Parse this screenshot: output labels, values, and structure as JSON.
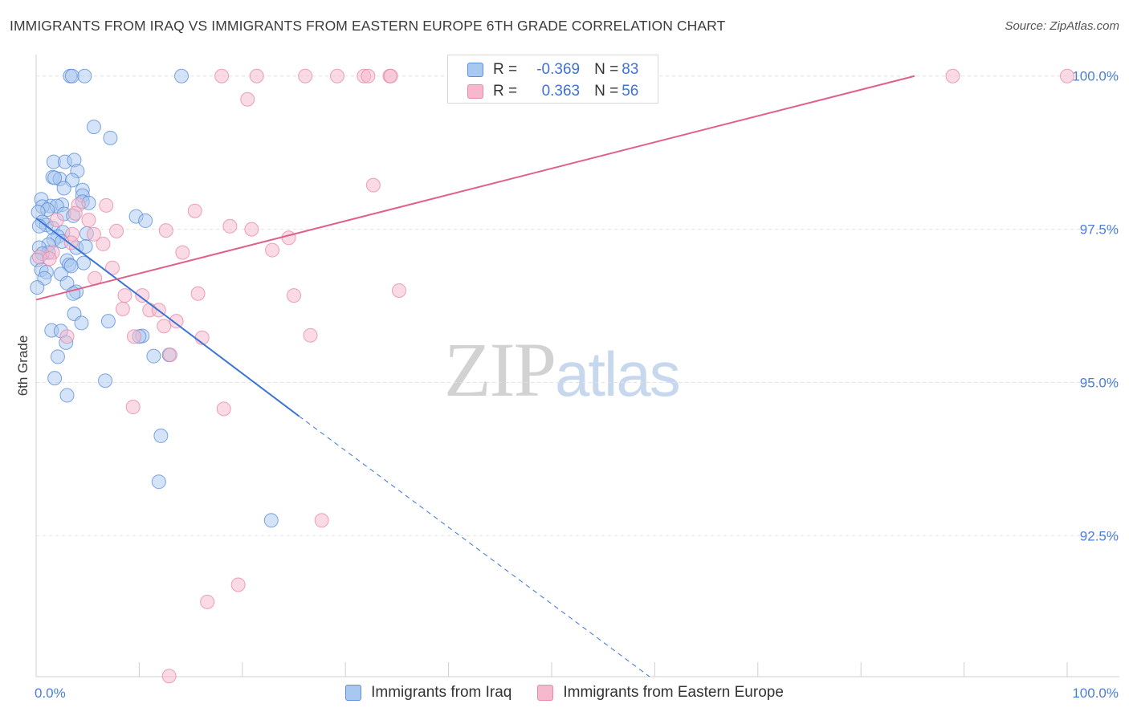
{
  "header": {
    "title": "IMMIGRANTS FROM IRAQ VS IMMIGRANTS FROM EASTERN EUROPE 6TH GRADE CORRELATION CHART",
    "source": "Source: ZipAtlas.com"
  },
  "watermark": {
    "zip": "ZIP",
    "atlas": "atlas"
  },
  "legend": {
    "series1": {
      "r_label": "R =",
      "r_value": "-0.369",
      "n_label": "N =",
      "n_value": "83"
    },
    "series2": {
      "r_label": "R =",
      "r_value": " 0.363",
      "n_label": "N =",
      "n_value": "56"
    }
  },
  "colors": {
    "blue_fill": "#a9c8f0",
    "blue_stroke": "#5d90d8",
    "blue_line": "#3a74d4",
    "pink_fill": "#f6b8cc",
    "pink_stroke": "#e88aa8",
    "pink_line": "#e0608a",
    "grid": "#e2e2e2",
    "tick_text": "#4a7ed8"
  },
  "chart_data": {
    "type": "scatter",
    "title": "IMMIGRANTS FROM IRAQ VS IMMIGRANTS FROM EASTERN EUROPE 6TH GRADE CORRELATION CHART",
    "xlabel": "",
    "ylabel": "6th Grade",
    "xlim": [
      0,
      100
    ],
    "ylim": [
      90.2,
      100.35
    ],
    "x_tick_labels": {
      "left": "0.0%",
      "right": "100.0%"
    },
    "y_ticks": [
      {
        "value": 100.0,
        "label": "100.0%"
      },
      {
        "value": 97.5,
        "label": "97.5%"
      },
      {
        "value": 95.0,
        "label": "95.0%"
      },
      {
        "value": 92.5,
        "label": "92.5%"
      }
    ],
    "series": [
      {
        "name": "Immigrants from Iraq",
        "color": "#a9c8f0",
        "r": -0.369,
        "n": 83,
        "trend": {
          "x0": 0.0,
          "y0": 97.68,
          "x1": 25.5,
          "y1": 94.45,
          "dash_to_x": 59.5,
          "dash_to_y": 90.2
        },
        "points": [
          [
            3.3,
            100.0
          ],
          [
            3.5,
            100.0
          ],
          [
            4.7,
            100.0
          ],
          [
            14.1,
            100.0
          ],
          [
            5.6,
            99.17
          ],
          [
            7.2,
            98.99
          ],
          [
            1.7,
            98.6
          ],
          [
            2.8,
            98.6
          ],
          [
            3.7,
            98.63
          ],
          [
            4.0,
            98.45
          ],
          [
            1.6,
            98.35
          ],
          [
            2.3,
            98.32
          ],
          [
            1.8,
            98.34
          ],
          [
            3.5,
            98.3
          ],
          [
            2.7,
            98.17
          ],
          [
            4.5,
            98.14
          ],
          [
            4.5,
            98.05
          ],
          [
            0.5,
            97.99
          ],
          [
            1.4,
            97.88
          ],
          [
            0.6,
            97.87
          ],
          [
            2.5,
            97.9
          ],
          [
            2.0,
            97.88
          ],
          [
            4.5,
            97.95
          ],
          [
            5.1,
            97.93
          ],
          [
            1.1,
            97.82
          ],
          [
            0.2,
            97.78
          ],
          [
            2.7,
            97.75
          ],
          [
            3.6,
            97.72
          ],
          [
            9.7,
            97.71
          ],
          [
            10.6,
            97.64
          ],
          [
            0.6,
            97.62
          ],
          [
            1.0,
            97.57
          ],
          [
            0.3,
            97.55
          ],
          [
            1.6,
            97.52
          ],
          [
            2.6,
            97.45
          ],
          [
            4.9,
            97.43
          ],
          [
            2.1,
            97.38
          ],
          [
            1.7,
            97.33
          ],
          [
            2.5,
            97.3
          ],
          [
            1.2,
            97.25
          ],
          [
            0.3,
            97.2
          ],
          [
            3.9,
            97.2
          ],
          [
            4.8,
            97.22
          ],
          [
            1.2,
            97.12
          ],
          [
            0.6,
            97.1
          ],
          [
            0.1,
            97.0
          ],
          [
            3.0,
            96.99
          ],
          [
            4.6,
            96.95
          ],
          [
            3.2,
            96.92
          ],
          [
            3.4,
            96.9
          ],
          [
            0.5,
            96.84
          ],
          [
            1.0,
            96.8
          ],
          [
            2.4,
            96.77
          ],
          [
            0.8,
            96.7
          ],
          [
            3.0,
            96.62
          ],
          [
            0.1,
            96.55
          ],
          [
            3.9,
            96.48
          ],
          [
            3.6,
            96.45
          ],
          [
            3.7,
            96.12
          ],
          [
            7.0,
            96.0
          ],
          [
            4.4,
            95.97
          ],
          [
            1.5,
            95.85
          ],
          [
            2.4,
            95.84
          ],
          [
            10.3,
            95.76
          ],
          [
            10.0,
            95.75
          ],
          [
            2.9,
            95.65
          ],
          [
            2.1,
            95.42
          ],
          [
            11.4,
            95.43
          ],
          [
            12.9,
            95.45
          ],
          [
            1.8,
            95.07
          ],
          [
            6.7,
            95.03
          ],
          [
            3.0,
            94.79
          ],
          [
            12.1,
            94.13
          ],
          [
            11.9,
            93.38
          ],
          [
            22.8,
            92.75
          ]
        ]
      },
      {
        "name": "Immigrants from Eastern Europe",
        "color": "#f6b8cc",
        "r": 0.363,
        "n": 56,
        "trend": {
          "x0": 0.0,
          "y0": 96.35,
          "x1": 85.2,
          "y1": 100.0
        },
        "points": [
          [
            18.0,
            100.0
          ],
          [
            21.4,
            100.0
          ],
          [
            26.1,
            100.0
          ],
          [
            29.2,
            100.0
          ],
          [
            31.8,
            100.0
          ],
          [
            32.2,
            100.0
          ],
          [
            34.3,
            100.0
          ],
          [
            34.4,
            100.0
          ],
          [
            88.9,
            100.0
          ],
          [
            100.0,
            100.0
          ],
          [
            20.5,
            99.62
          ],
          [
            32.7,
            98.22
          ],
          [
            6.8,
            97.89
          ],
          [
            4.1,
            97.9
          ],
          [
            3.8,
            97.76
          ],
          [
            15.4,
            97.8
          ],
          [
            5.1,
            97.65
          ],
          [
            2.0,
            97.65
          ],
          [
            18.8,
            97.55
          ],
          [
            20.9,
            97.5
          ],
          [
            7.8,
            97.47
          ],
          [
            12.6,
            97.48
          ],
          [
            3.5,
            97.42
          ],
          [
            5.6,
            97.42
          ],
          [
            24.5,
            97.36
          ],
          [
            6.5,
            97.26
          ],
          [
            3.4,
            97.28
          ],
          [
            22.9,
            97.16
          ],
          [
            14.2,
            97.12
          ],
          [
            1.6,
            97.12
          ],
          [
            0.3,
            97.05
          ],
          [
            1.3,
            97.02
          ],
          [
            7.4,
            96.87
          ],
          [
            5.7,
            96.7
          ],
          [
            8.6,
            96.42
          ],
          [
            10.3,
            96.42
          ],
          [
            15.7,
            96.45
          ],
          [
            25.0,
            96.42
          ],
          [
            35.2,
            96.5
          ],
          [
            8.4,
            96.2
          ],
          [
            11.0,
            96.18
          ],
          [
            11.9,
            96.18
          ],
          [
            13.6,
            96.0
          ],
          [
            12.4,
            95.92
          ],
          [
            9.5,
            95.75
          ],
          [
            16.1,
            95.73
          ],
          [
            26.6,
            95.77
          ],
          [
            3.0,
            95.75
          ],
          [
            13.0,
            95.45
          ],
          [
            9.4,
            94.6
          ],
          [
            18.2,
            94.57
          ],
          [
            27.7,
            92.75
          ],
          [
            19.6,
            91.7
          ],
          [
            16.6,
            91.42
          ],
          [
            12.9,
            90.21
          ]
        ]
      }
    ]
  },
  "bottom_legend": {
    "item1": "Immigrants from Iraq",
    "item2": "Immigrants from Eastern Europe"
  }
}
